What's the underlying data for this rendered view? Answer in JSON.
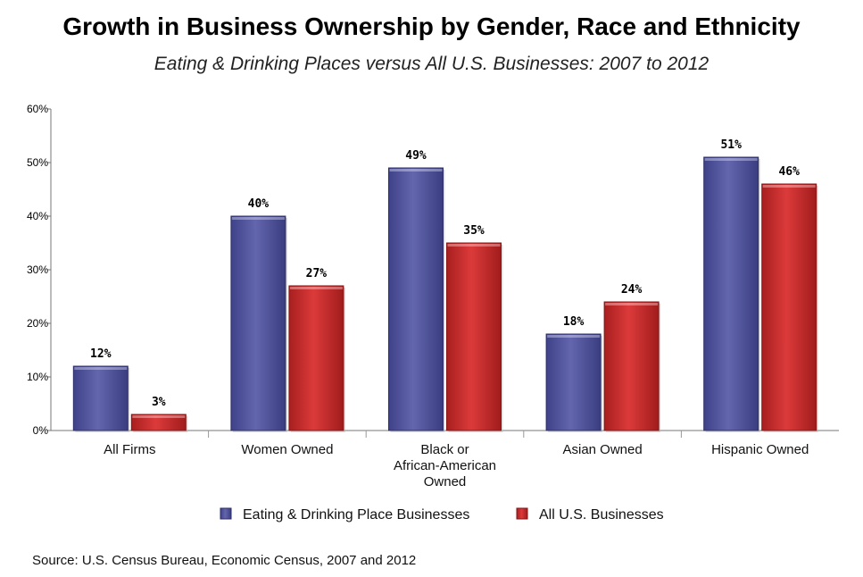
{
  "chart_data": {
    "type": "bar",
    "title": "Growth in Business Ownership by Gender, Race and Ethnicity",
    "subtitle": "Eating & Drinking Places versus All U.S. Businesses: 2007 to 2012",
    "categories": [
      [
        "All Firms"
      ],
      [
        "Women Owned"
      ],
      [
        "Black or",
        "African-American",
        "Owned"
      ],
      [
        "Asian Owned"
      ],
      [
        "Hispanic Owned"
      ]
    ],
    "series": [
      {
        "name": "Eating & Drinking Place Businesses",
        "values": [
          12,
          40,
          49,
          18,
          51
        ],
        "labels": [
          "12%",
          "40%",
          "49%",
          "18%",
          "51%"
        ],
        "color": "#5b5ea6"
      },
      {
        "name": "All U.S. Businesses",
        "values": [
          3,
          27,
          35,
          24,
          46
        ],
        "labels": [
          "3%",
          "27%",
          "35%",
          "24%",
          "46%"
        ],
        "color": "#d43535"
      }
    ],
    "ylim": [
      0,
      60
    ],
    "yticks": [
      "0%",
      "10%",
      "20%",
      "30%",
      "40%",
      "50%",
      "60%"
    ],
    "grid": false,
    "legend": "bottom",
    "source": "Source: U.S. Census Bureau, Economic Census, 2007 and 2012"
  }
}
